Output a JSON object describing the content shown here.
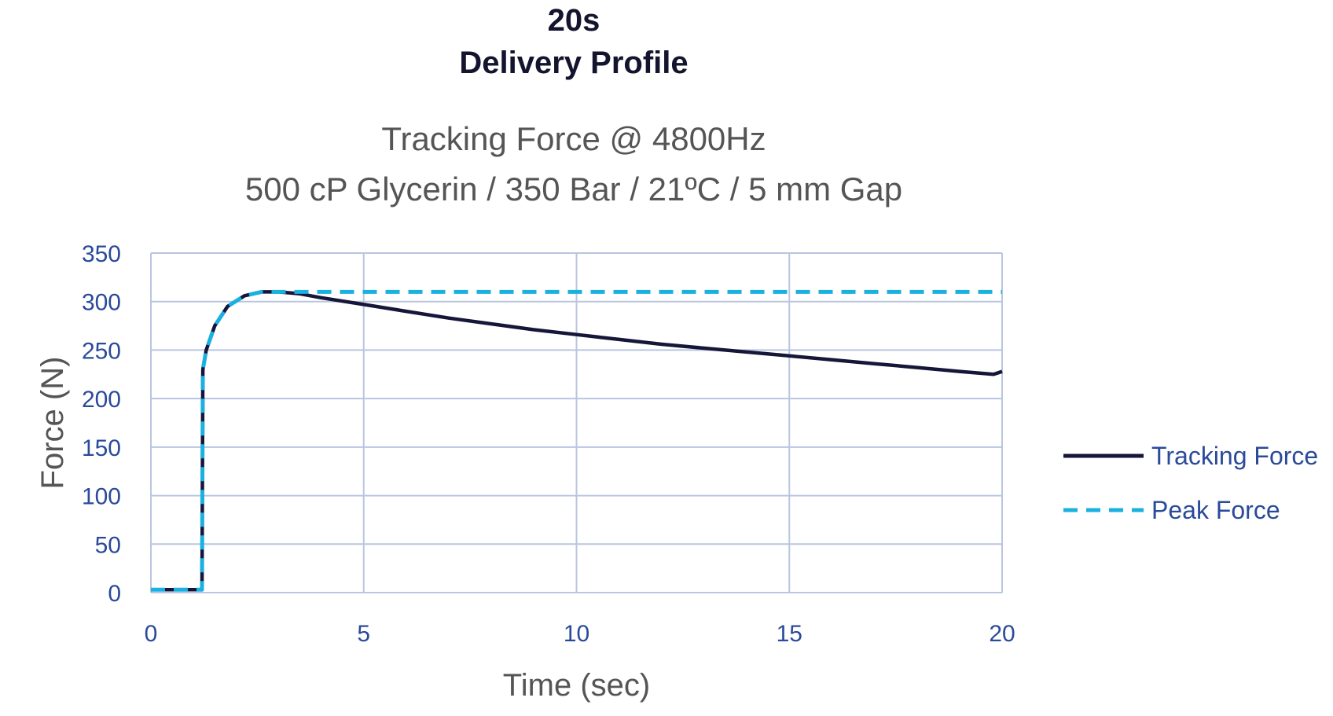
{
  "header": {
    "line1": "20s",
    "line2": "Delivery Profile"
  },
  "chart_data": {
    "type": "line",
    "title": "Tracking Force @ 4800Hz",
    "subtitle": "500 cP Glycerin / 350 Bar / 21ºC / 5 mm Gap",
    "xlabel": "Time (sec)",
    "ylabel": "Force (N)",
    "xlim": [
      0,
      20
    ],
    "ylim": [
      0,
      350
    ],
    "xticks": [
      "0",
      "5",
      "10",
      "15",
      "20"
    ],
    "yticks": [
      "0",
      "50",
      "100",
      "150",
      "200",
      "250",
      "300",
      "350"
    ],
    "grid": true,
    "legend_position": "right",
    "colors": {
      "tracking": "#16163a",
      "peak": "#1ab0e0",
      "grid": "#b9c6e0",
      "tick_text": "#2a4a9a"
    },
    "series": [
      {
        "name": "Tracking Force",
        "style": "solid",
        "x": [
          0,
          1.15,
          1.2,
          1.22,
          1.3,
          1.5,
          1.8,
          2.2,
          2.6,
          3.0,
          3.5,
          4.0,
          5.0,
          6.0,
          7.0,
          8.0,
          9.0,
          10.0,
          11.0,
          12.0,
          13.0,
          14.0,
          15.0,
          16.0,
          17.0,
          18.0,
          19.0,
          19.8,
          20.0
        ],
        "y": [
          3,
          3,
          3,
          230,
          250,
          275,
          295,
          306,
          310,
          310,
          308,
          304,
          297,
          290,
          283,
          277,
          271,
          266,
          261,
          256,
          252,
          248,
          244,
          240,
          236,
          232,
          228,
          225,
          228
        ]
      },
      {
        "name": "Peak Force",
        "style": "dashed",
        "x": [
          0,
          1.15,
          1.2,
          1.22,
          1.3,
          1.5,
          1.8,
          2.2,
          2.6,
          3.0,
          20.0
        ],
        "y": [
          3,
          3,
          3,
          230,
          250,
          275,
          295,
          306,
          310,
          310,
          310
        ]
      }
    ]
  }
}
